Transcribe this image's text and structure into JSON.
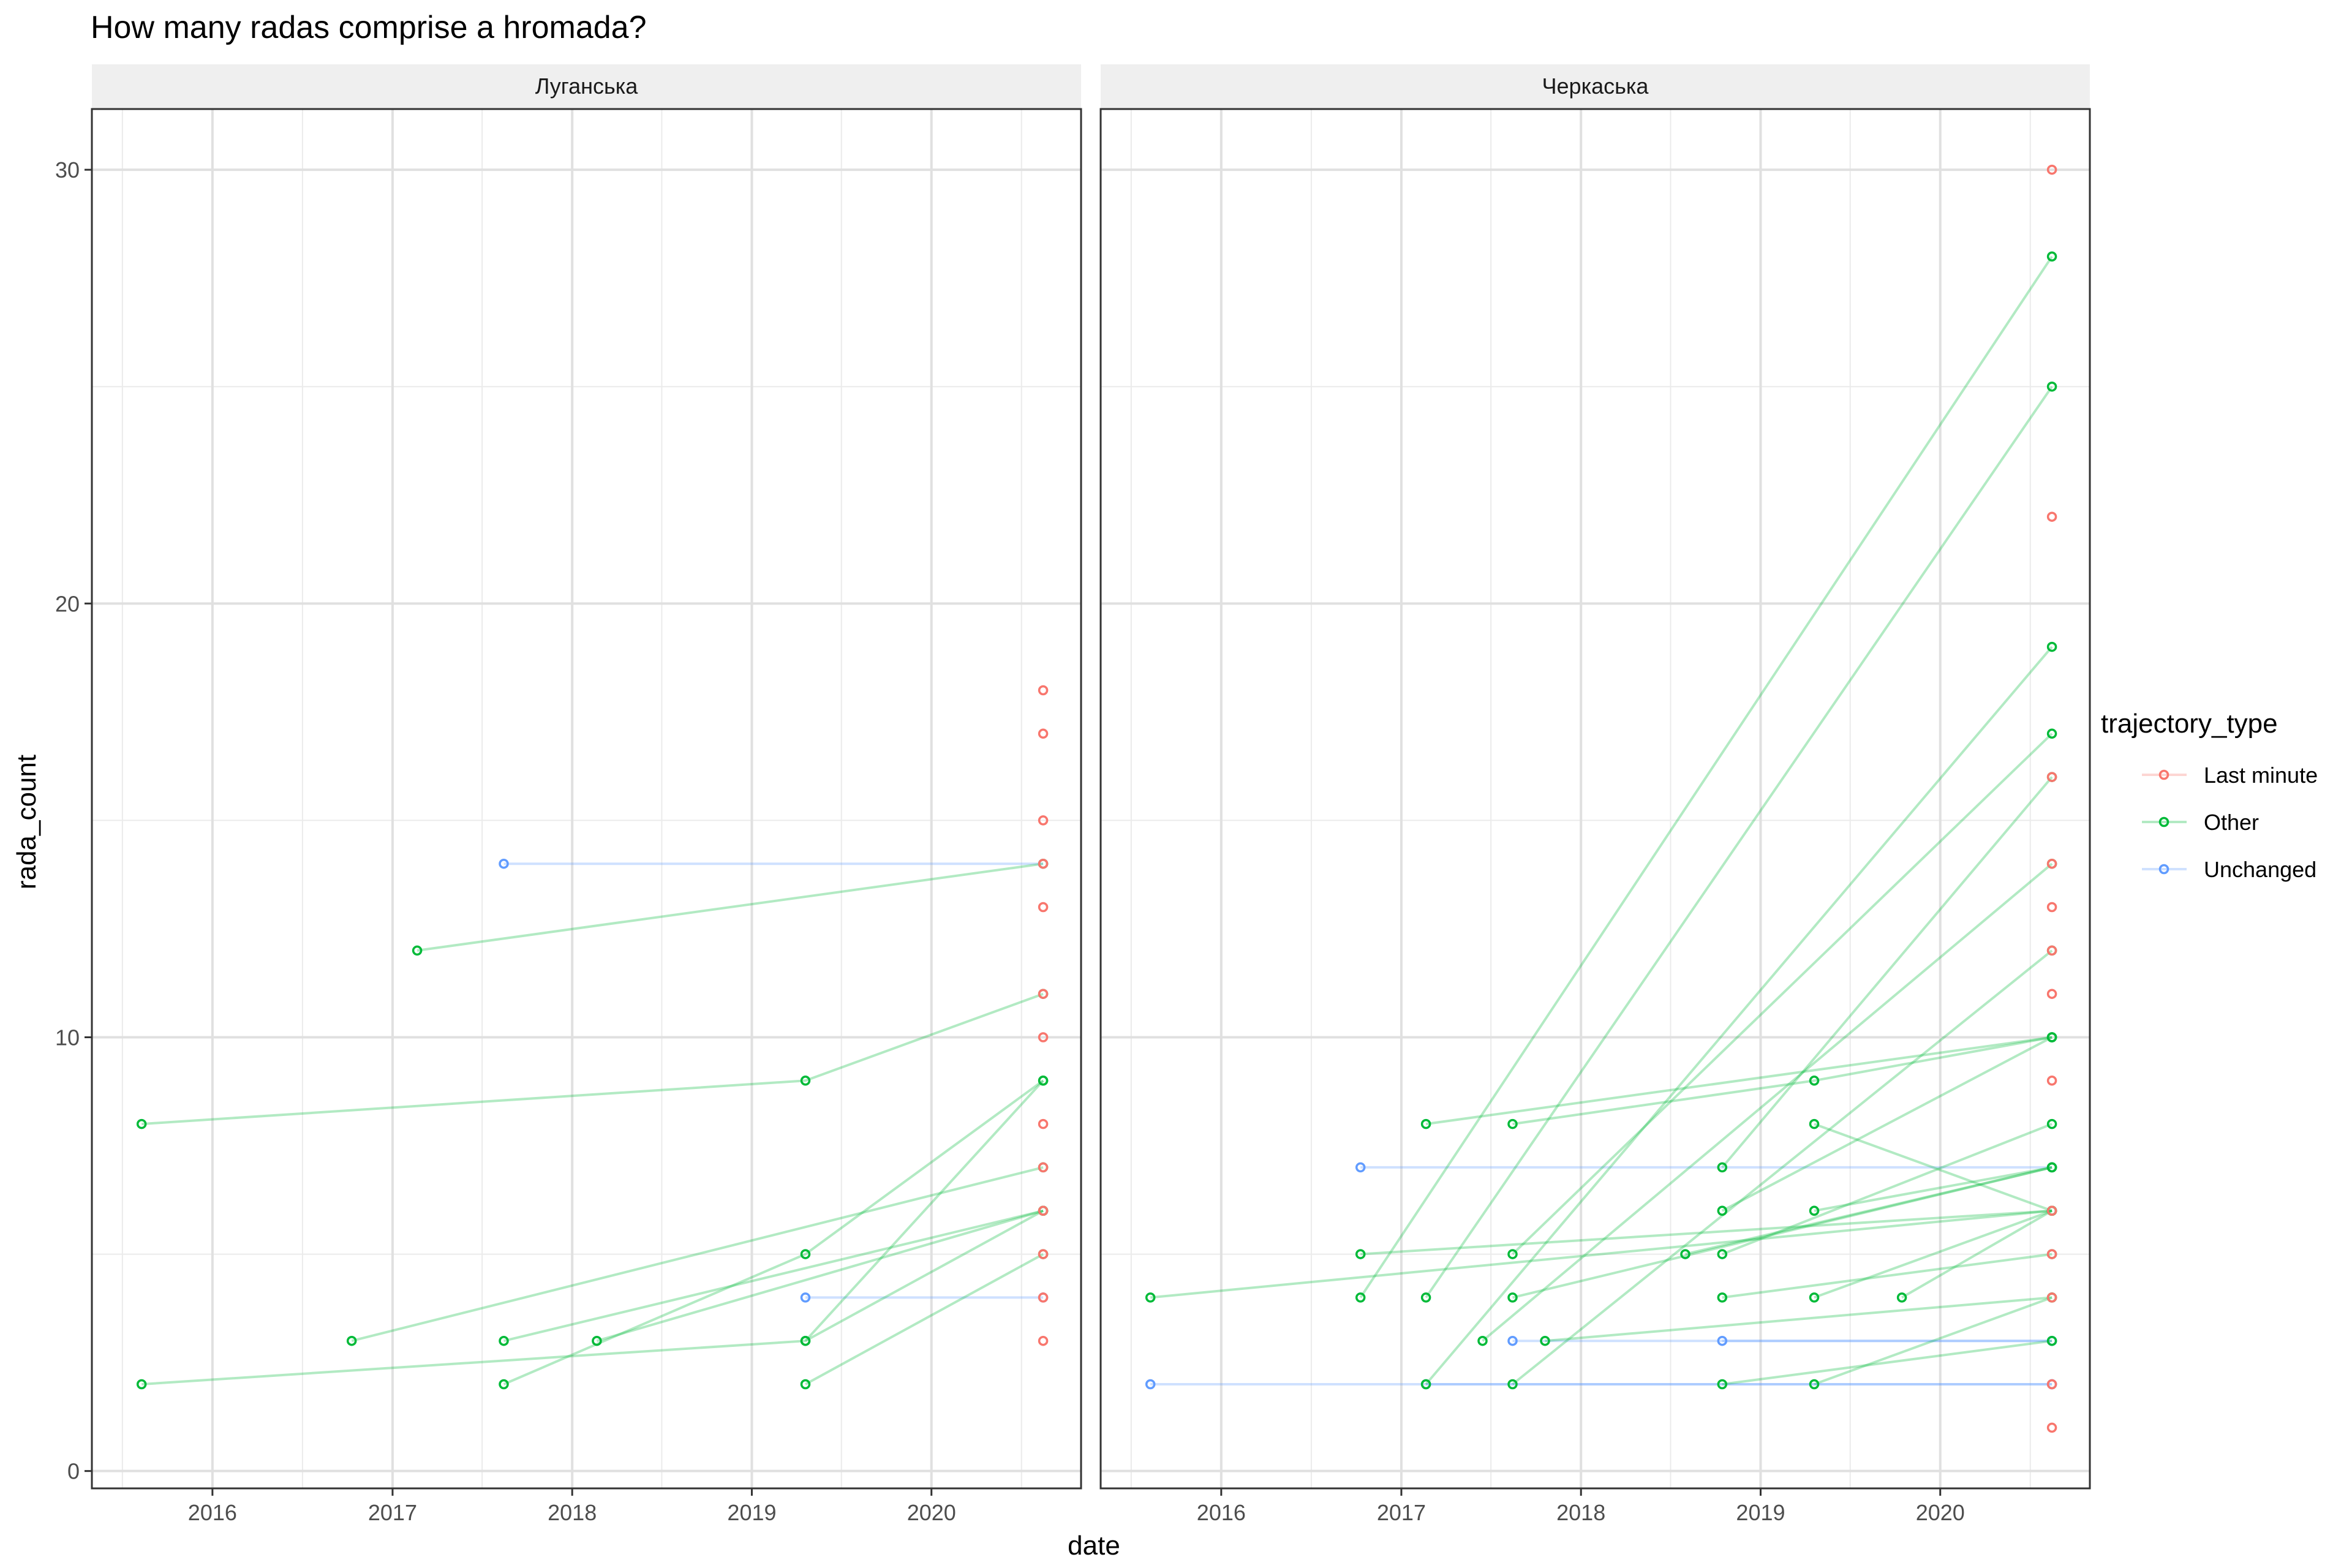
{
  "chart_data": {
    "type": "line",
    "title": "How many radas comprise a hromada?",
    "xlabel": "date",
    "ylabel": "rada_count",
    "xlim": [
      "2015-05-01",
      "2020-10-31"
    ],
    "ylim": [
      -0.4,
      31.4
    ],
    "x_ticks": [
      "2016",
      "2017",
      "2018",
      "2019",
      "2020"
    ],
    "y_ticks": [
      0,
      10,
      20,
      30
    ],
    "grid": true,
    "legend": {
      "title": "trajectory_type",
      "position": "right",
      "entries": [
        {
          "label": "Last minute",
          "color": "#F8766D"
        },
        {
          "label": "Other",
          "color": "#00BA38"
        },
        {
          "label": "Unchanged",
          "color": "#619CFF"
        }
      ]
    },
    "panels": [
      {
        "label": "Луганська",
        "series": [
          {
            "group": "Unchanged",
            "values": [
              [
                "2017-08-15",
                14
              ],
              [
                "2020-08-15",
                14
              ]
            ]
          },
          {
            "group": "Unchanged",
            "values": [
              [
                "2019-04-20",
                4
              ],
              [
                "2020-08-15",
                4
              ]
            ]
          },
          {
            "group": "Other",
            "values": [
              [
                "2017-02-20",
                12
              ],
              [
                "2020-08-15",
                14
              ]
            ]
          },
          {
            "group": "Other",
            "values": [
              [
                "2015-08-10",
                8
              ],
              [
                "2019-04-20",
                9
              ],
              [
                "2020-08-15",
                11
              ]
            ]
          },
          {
            "group": "Other",
            "values": [
              [
                "2015-08-10",
                2
              ],
              [
                "2019-04-20",
                3
              ],
              [
                "2020-08-15",
                6
              ]
            ]
          },
          {
            "group": "Other",
            "values": [
              [
                "2016-10-10",
                3
              ],
              [
                "2020-08-15",
                7
              ]
            ]
          },
          {
            "group": "Other",
            "values": [
              [
                "2017-08-15",
                3
              ],
              [
                "2020-08-15",
                6
              ]
            ]
          },
          {
            "group": "Other",
            "values": [
              [
                "2017-08-15",
                2
              ],
              [
                "2019-04-20",
                5
              ],
              [
                "2020-08-15",
                9
              ]
            ]
          },
          {
            "group": "Other",
            "values": [
              [
                "2018-02-20",
                3
              ],
              [
                "2020-08-15",
                6
              ]
            ]
          },
          {
            "group": "Other",
            "values": [
              [
                "2019-04-20",
                2
              ],
              [
                "2020-08-15",
                5
              ]
            ]
          },
          {
            "group": "Other",
            "values": [
              [
                "2019-04-20",
                3
              ],
              [
                "2020-08-15",
                9
              ]
            ]
          },
          {
            "group": "Last minute",
            "values": [
              [
                "2020-08-15",
                18
              ]
            ]
          },
          {
            "group": "Last minute",
            "values": [
              [
                "2020-08-15",
                17
              ]
            ]
          },
          {
            "group": "Last minute",
            "values": [
              [
                "2020-08-15",
                15
              ]
            ]
          },
          {
            "group": "Last minute",
            "values": [
              [
                "2020-08-15",
                14
              ]
            ]
          },
          {
            "group": "Last minute",
            "values": [
              [
                "2020-08-15",
                13
              ]
            ]
          },
          {
            "group": "Last minute",
            "values": [
              [
                "2020-08-15",
                11
              ]
            ]
          },
          {
            "group": "Last minute",
            "values": [
              [
                "2020-08-15",
                10
              ]
            ]
          },
          {
            "group": "Last minute",
            "values": [
              [
                "2020-08-15",
                8
              ]
            ]
          },
          {
            "group": "Last minute",
            "values": [
              [
                "2020-08-15",
                7
              ]
            ]
          },
          {
            "group": "Last minute",
            "values": [
              [
                "2020-08-15",
                6
              ]
            ]
          },
          {
            "group": "Last minute",
            "values": [
              [
                "2020-08-15",
                5
              ]
            ]
          },
          {
            "group": "Last minute",
            "values": [
              [
                "2020-08-15",
                4
              ]
            ]
          },
          {
            "group": "Last minute",
            "values": [
              [
                "2020-08-15",
                3
              ]
            ]
          }
        ]
      },
      {
        "label": "Черкаська",
        "series": [
          {
            "group": "Unchanged",
            "values": [
              [
                "2015-08-10",
                2
              ],
              [
                "2020-08-15",
                2
              ]
            ]
          },
          {
            "group": "Unchanged",
            "values": [
              [
                "2016-10-10",
                7
              ],
              [
                "2020-08-15",
                7
              ]
            ]
          },
          {
            "group": "Unchanged",
            "values": [
              [
                "2017-08-15",
                3
              ],
              [
                "2020-08-15",
                3
              ]
            ]
          },
          {
            "group": "Unchanged",
            "values": [
              [
                "2018-10-15",
                3
              ],
              [
                "2020-08-15",
                3
              ]
            ]
          },
          {
            "group": "Unchanged",
            "values": [
              [
                "2017-02-20",
                2
              ],
              [
                "2020-08-15",
                2
              ]
            ]
          },
          {
            "group": "Other",
            "values": [
              [
                "2015-08-10",
                4
              ],
              [
                "2020-08-15",
                6
              ]
            ]
          },
          {
            "group": "Other",
            "values": [
              [
                "2016-10-10",
                5
              ],
              [
                "2020-08-15",
                6
              ]
            ]
          },
          {
            "group": "Other",
            "values": [
              [
                "2016-10-10",
                4
              ],
              [
                "2020-08-15",
                28
              ]
            ]
          },
          {
            "group": "Other",
            "values": [
              [
                "2017-02-20",
                8
              ],
              [
                "2020-08-15",
                10
              ]
            ]
          },
          {
            "group": "Other",
            "values": [
              [
                "2017-02-20",
                4
              ],
              [
                "2020-08-15",
                25
              ]
            ]
          },
          {
            "group": "Other",
            "values": [
              [
                "2017-02-20",
                2
              ],
              [
                "2020-08-15",
                19
              ]
            ]
          },
          {
            "group": "Other",
            "values": [
              [
                "2017-08-15",
                8
              ],
              [
                "2019-04-20",
                9
              ],
              [
                "2020-08-15",
                10
              ]
            ]
          },
          {
            "group": "Other",
            "values": [
              [
                "2017-08-15",
                5
              ],
              [
                "2020-08-15",
                17
              ]
            ]
          },
          {
            "group": "Other",
            "values": [
              [
                "2017-08-15",
                4
              ],
              [
                "2020-08-15",
                7
              ]
            ]
          },
          {
            "group": "Other",
            "values": [
              [
                "2017-08-15",
                2
              ],
              [
                "2020-08-15",
                12
              ]
            ]
          },
          {
            "group": "Other",
            "values": [
              [
                "2017-06-15",
                3
              ],
              [
                "2020-08-15",
                14
              ]
            ]
          },
          {
            "group": "Other",
            "values": [
              [
                "2017-10-20",
                3
              ],
              [
                "2020-08-15",
                4
              ]
            ]
          },
          {
            "group": "Other",
            "values": [
              [
                "2018-08-01",
                5
              ],
              [
                "2020-08-15",
                7
              ]
            ]
          },
          {
            "group": "Other",
            "values": [
              [
                "2018-10-15",
                7
              ],
              [
                "2020-08-15",
                16
              ]
            ]
          },
          {
            "group": "Other",
            "values": [
              [
                "2018-10-15",
                6
              ],
              [
                "2020-08-15",
                10
              ]
            ]
          },
          {
            "group": "Other",
            "values": [
              [
                "2018-10-15",
                5
              ],
              [
                "2020-08-15",
                8
              ]
            ]
          },
          {
            "group": "Other",
            "values": [
              [
                "2018-10-15",
                4
              ],
              [
                "2020-08-15",
                5
              ]
            ]
          },
          {
            "group": "Other",
            "values": [
              [
                "2018-10-15",
                2
              ],
              [
                "2020-08-15",
                3
              ]
            ]
          },
          {
            "group": "Other",
            "values": [
              [
                "2019-04-20",
                8
              ],
              [
                "2020-08-15",
                6
              ]
            ]
          },
          {
            "group": "Other",
            "values": [
              [
                "2019-04-20",
                6
              ],
              [
                "2020-08-15",
                7
              ]
            ]
          },
          {
            "group": "Other",
            "values": [
              [
                "2019-04-20",
                4
              ],
              [
                "2020-08-15",
                6
              ]
            ]
          },
          {
            "group": "Other",
            "values": [
              [
                "2019-04-20",
                2
              ],
              [
                "2020-08-15",
                4
              ]
            ]
          },
          {
            "group": "Other",
            "values": [
              [
                "2019-10-15",
                4
              ],
              [
                "2020-08-15",
                6
              ]
            ]
          },
          {
            "group": "Last minute",
            "values": [
              [
                "2020-08-15",
                30
              ]
            ]
          },
          {
            "group": "Last minute",
            "values": [
              [
                "2020-08-15",
                22
              ]
            ]
          },
          {
            "group": "Last minute",
            "values": [
              [
                "2020-08-15",
                16
              ]
            ]
          },
          {
            "group": "Last minute",
            "values": [
              [
                "2020-08-15",
                14
              ]
            ]
          },
          {
            "group": "Last minute",
            "values": [
              [
                "2020-08-15",
                13
              ]
            ]
          },
          {
            "group": "Last minute",
            "values": [
              [
                "2020-08-15",
                12
              ]
            ]
          },
          {
            "group": "Last minute",
            "values": [
              [
                "2020-08-15",
                11
              ]
            ]
          },
          {
            "group": "Last minute",
            "values": [
              [
                "2020-08-15",
                9
              ]
            ]
          },
          {
            "group": "Last minute",
            "values": [
              [
                "2020-08-15",
                6
              ]
            ]
          },
          {
            "group": "Last minute",
            "values": [
              [
                "2020-08-15",
                5
              ]
            ]
          },
          {
            "group": "Last minute",
            "values": [
              [
                "2020-08-15",
                4
              ]
            ]
          },
          {
            "group": "Last minute",
            "values": [
              [
                "2020-08-15",
                2
              ]
            ]
          },
          {
            "group": "Last minute",
            "values": [
              [
                "2020-08-15",
                1
              ]
            ]
          }
        ]
      }
    ]
  }
}
